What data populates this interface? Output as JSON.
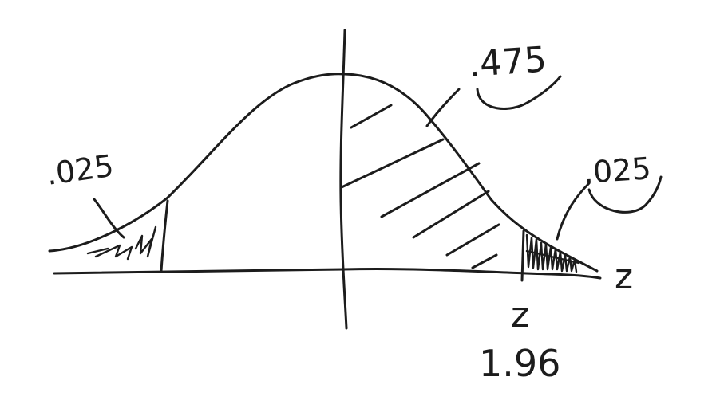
{
  "labels": {
    "left_tail_area": ".025",
    "center_area": ".475",
    "right_tail_area": ".025",
    "axis_variable": "z",
    "critical_label": "z",
    "critical_value": "1.96"
  }
}
